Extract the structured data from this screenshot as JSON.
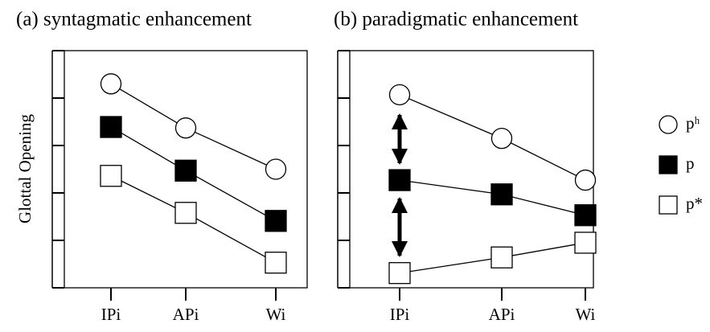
{
  "chart_data": [
    {
      "type": "line",
      "title": "(a) syntagmatic enhancement",
      "y_label": "Glottal Opening",
      "categories": [
        "IPi",
        "APi",
        "Wi"
      ],
      "ylim": [
        0,
        5
      ],
      "yticks": [
        0,
        1,
        2,
        3,
        4,
        5
      ],
      "series": [
        {
          "name": "pʰ",
          "marker": "circle",
          "color": "#ffffff",
          "values": [
            4.3,
            3.37,
            2.5
          ]
        },
        {
          "name": "p",
          "marker": "square",
          "color": "#000000",
          "values": [
            3.39,
            2.47,
            1.41
          ]
        },
        {
          "name": "p*",
          "marker": "square",
          "color": "#ffffff",
          "values": [
            2.36,
            1.58,
            0.53
          ]
        }
      ]
    },
    {
      "type": "line",
      "title": "(b) paradigmatic enhancement",
      "categories": [
        "IPi",
        "APi",
        "Wi"
      ],
      "ylim": [
        0,
        5
      ],
      "yticks": [
        0,
        1,
        2,
        3,
        4,
        5
      ],
      "series": [
        {
          "name": "pʰ",
          "marker": "circle",
          "color": "#ffffff",
          "values": [
            4.07,
            3.15,
            2.27
          ]
        },
        {
          "name": "p",
          "marker": "square",
          "color": "#000000",
          "values": [
            2.27,
            1.97,
            1.53
          ]
        },
        {
          "name": "p*",
          "marker": "square",
          "color": "#ffffff",
          "values": [
            0.31,
            0.64,
            0.95
          ]
        }
      ]
    }
  ]
}
